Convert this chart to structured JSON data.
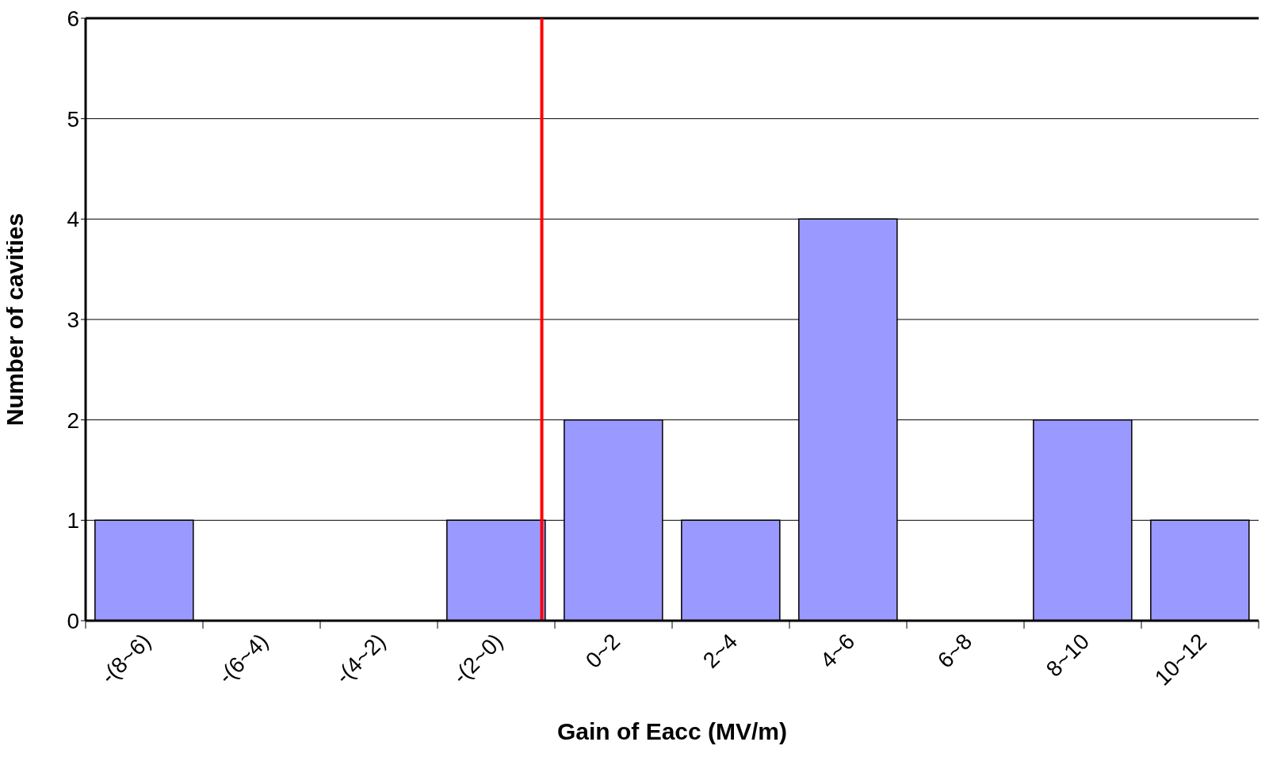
{
  "chart_data": {
    "type": "bar",
    "xlabel": "Gain of Eacc (MV/m)",
    "ylabel": "Number of cavities",
    "categories": [
      "-(8~6)",
      "-(6~4)",
      "-(4~2)",
      "-(2~0)",
      "0~2",
      "2~4",
      "4~6",
      "6~8",
      "8~10",
      "10~12"
    ],
    "values": [
      1,
      0,
      0,
      1,
      2,
      1,
      4,
      0,
      2,
      1
    ],
    "color": "#9999ff",
    "ylim": [
      0,
      6
    ],
    "yticks": [
      0,
      1,
      2,
      3,
      4,
      5,
      6
    ],
    "grid": "y",
    "ref_lines": [
      {
        "axis": "x",
        "value": "0~2",
        "color": "#ff0000"
      }
    ]
  }
}
